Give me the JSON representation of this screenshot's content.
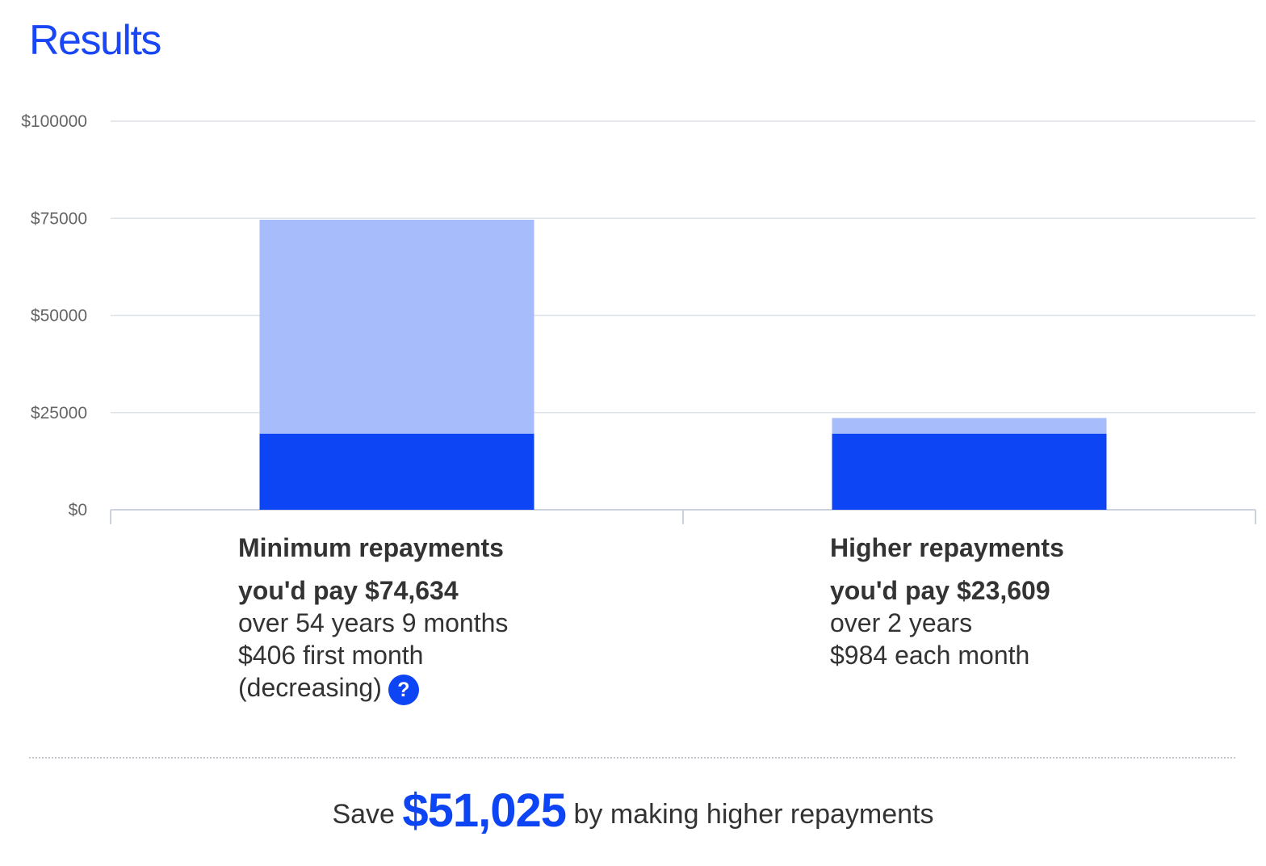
{
  "page": {
    "title": "Results"
  },
  "colors": {
    "title": "#1a47f5",
    "principal": "#0d45f5",
    "interest": "#a7bdfb",
    "gridline": "#dde1e8",
    "axis": "#cdd3dc",
    "help_icon_bg": "#0d45f5",
    "savings_amount": "#0d45f5"
  },
  "chart_data": {
    "type": "bar",
    "stacked": true,
    "categories": [
      "Minimum repayments",
      "Higher repayments"
    ],
    "series": [
      {
        "key": "principal",
        "values": [
          19600,
          19600
        ]
      },
      {
        "key": "interest",
        "values": [
          55034,
          4009
        ]
      }
    ],
    "totals": [
      74634,
      23609
    ],
    "ylim": [
      0,
      100000
    ],
    "yticks": [
      0,
      25000,
      50000,
      75000,
      100000
    ],
    "ytick_labels": [
      "$0",
      "$25000",
      "$50000",
      "$75000",
      "$100000"
    ],
    "grid": true,
    "legend": "none"
  },
  "results": {
    "minimum": {
      "title": "Minimum repayments",
      "total_line": "you'd pay $74,634",
      "duration": "over 54 years 9 months",
      "payment": "$406 first month",
      "payment_note": "(decreasing)",
      "help_icon": "?"
    },
    "higher": {
      "title": "Higher repayments",
      "total_line": "you'd pay $23,609",
      "duration": "over 2 years",
      "payment": "$984 each month"
    }
  },
  "savings": {
    "prefix": "Save",
    "amount": "$51,025",
    "suffix": "by making higher repayments"
  }
}
